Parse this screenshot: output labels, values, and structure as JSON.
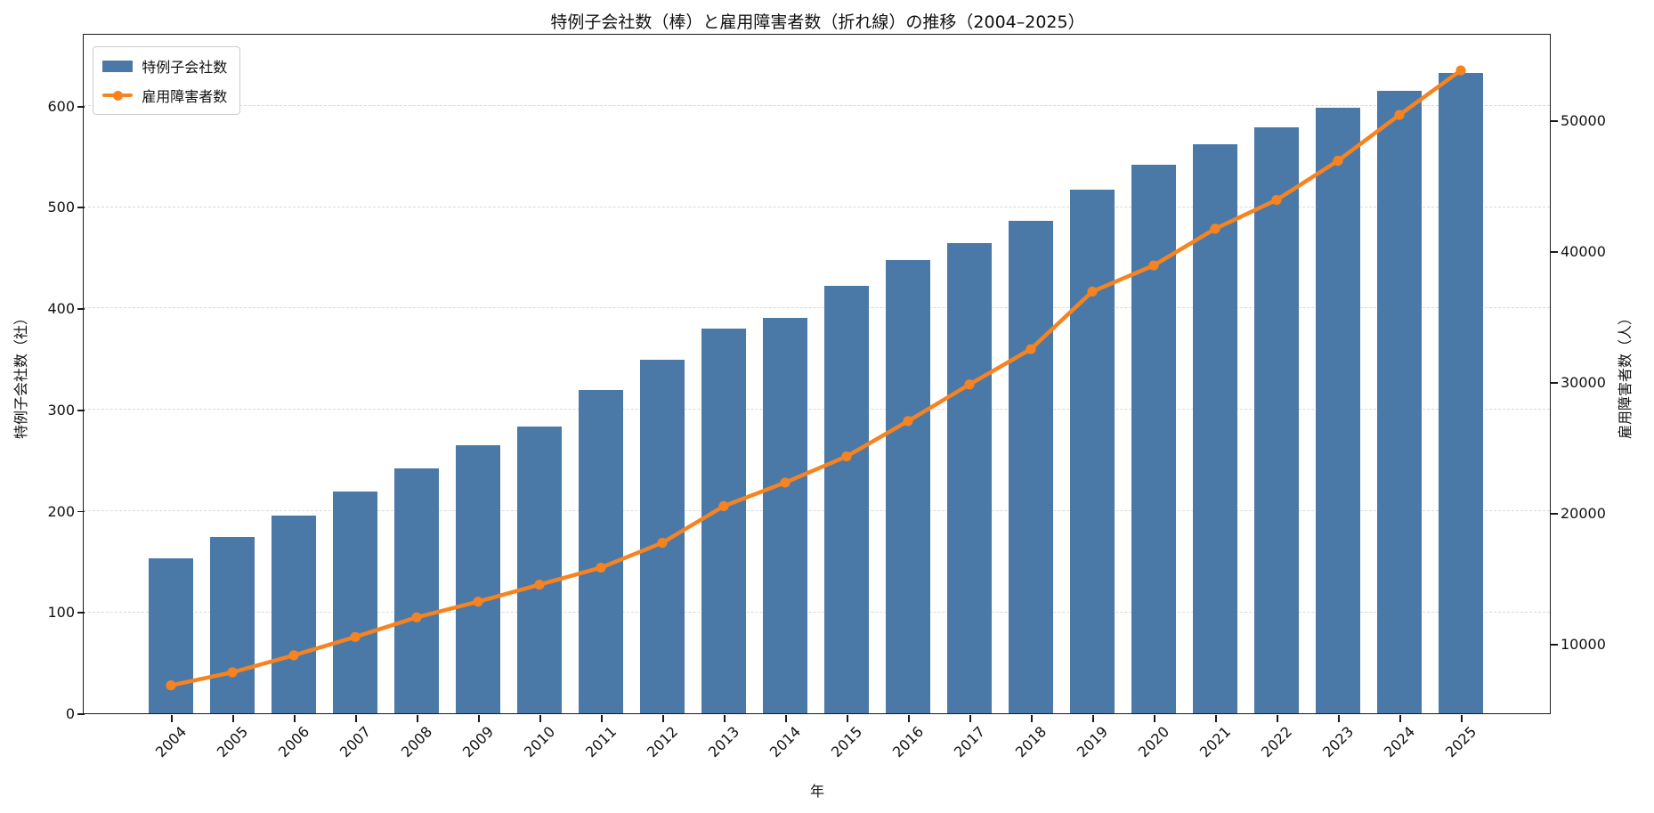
{
  "chart_data": {
    "type": "bar+line (dual axis)",
    "title": "特例子会社数（棒）と雇用障害者数（折れ線）の推移（2004–2025）",
    "xlabel": "年",
    "ylabel_left": "特例子会社数（社）",
    "ylabel_right": "雇用障害者数（人）",
    "categories": [
      "2004",
      "2005",
      "2006",
      "2007",
      "2008",
      "2009",
      "2010",
      "2011",
      "2012",
      "2013",
      "2014",
      "2015",
      "2016",
      "2017",
      "2018",
      "2019",
      "2020",
      "2021",
      "2022",
      "2023",
      "2024",
      "2025"
    ],
    "series": [
      {
        "name": "特例子会社数",
        "type": "bar",
        "axis": "left",
        "color": "#4a79a8",
        "values": [
          153,
          174,
          195,
          219,
          242,
          265,
          283,
          319,
          349,
          380,
          391,
          422,
          448,
          464,
          486,
          517,
          542,
          562,
          579,
          598,
          615,
          632
        ]
      },
      {
        "name": "雇用障害者数",
        "type": "line",
        "axis": "right",
        "color": "#f78320",
        "marker": "circle",
        "values": [
          6800,
          7800,
          9100,
          10500,
          12000,
          13200,
          14500,
          15800,
          17700,
          20500,
          22300,
          24300,
          27000,
          29800,
          32500,
          36900,
          38900,
          41700,
          43900,
          46900,
          50400,
          53800
        ]
      }
    ],
    "left_axis": {
      "ticks": [
        0,
        100,
        200,
        300,
        400,
        500,
        600
      ],
      "range": [
        0,
        670
      ]
    },
    "right_axis": {
      "ticks": [
        10000,
        20000,
        30000,
        40000,
        50000
      ],
      "range": [
        4670,
        56530
      ]
    },
    "grid": "horizontal dashed gridlines at left-axis ticks",
    "legend_position": "upper left"
  }
}
